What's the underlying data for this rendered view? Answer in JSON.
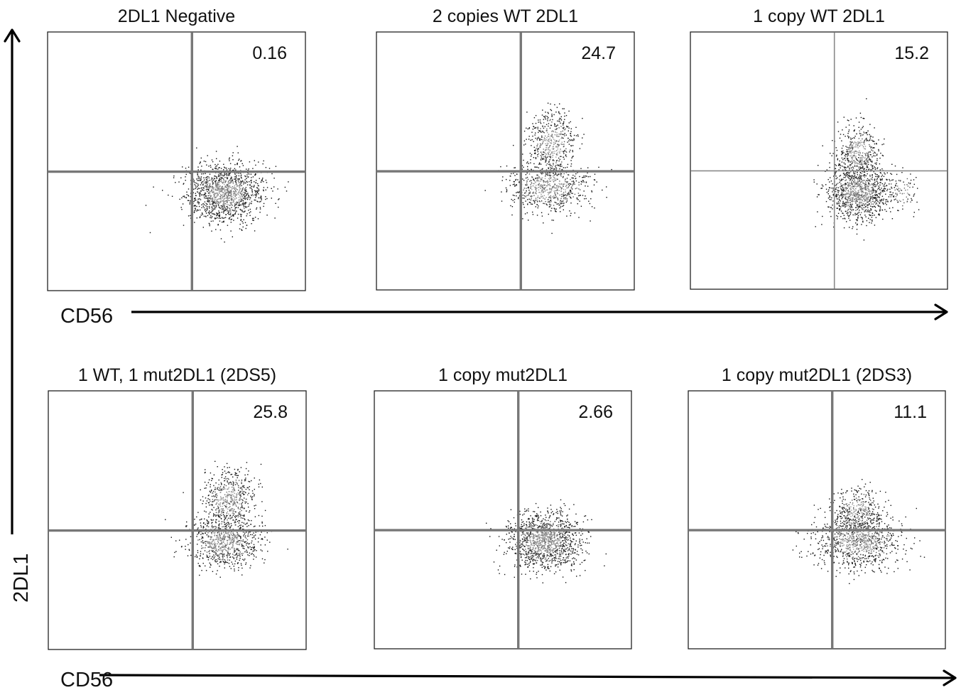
{
  "chart_data": {
    "type": "scatter",
    "plot_kind": "flow cytometry dot plots with quadrant gates",
    "grid": false,
    "xlabel": "CD56",
    "ylabel": "2DL1",
    "panels": [
      {
        "title": "2DL1 Negative",
        "quadrant_value": "0.16",
        "clusters": [
          {
            "cx": 0.69,
            "cy": 0.38,
            "sx": 0.075,
            "sy": 0.055,
            "n": 1400,
            "shade": "#444444"
          }
        ]
      },
      {
        "title": "2 copies WT 2DL1",
        "quadrant_value": "24.7",
        "clusters": [
          {
            "cx": 0.68,
            "cy": 0.57,
            "sx": 0.045,
            "sy": 0.065,
            "n": 500,
            "shade": "#2a2a2a"
          },
          {
            "cx": 0.67,
            "cy": 0.4,
            "sx": 0.08,
            "sy": 0.05,
            "n": 700,
            "shade": "#3a3a3a"
          }
        ]
      },
      {
        "title": "1 copy WT 2DL1",
        "quadrant_value": "15.2",
        "clusters": [
          {
            "cx": 0.65,
            "cy": 0.53,
            "sx": 0.04,
            "sy": 0.06,
            "n": 450,
            "shade": "#2a2a2a"
          },
          {
            "cx": 0.65,
            "cy": 0.38,
            "sx": 0.06,
            "sy": 0.055,
            "n": 1100,
            "shade": "#4a4a4a"
          },
          {
            "cx": 0.82,
            "cy": 0.38,
            "sx": 0.035,
            "sy": 0.04,
            "n": 90,
            "shade": "#222222"
          }
        ]
      },
      {
        "title": "1 WT, 1 mut2DL1 (2DS5)",
        "quadrant_value": "25.8",
        "clusters": [
          {
            "cx": 0.7,
            "cy": 0.58,
            "sx": 0.05,
            "sy": 0.06,
            "n": 550,
            "shade": "#2a2a2a"
          },
          {
            "cx": 0.68,
            "cy": 0.42,
            "sx": 0.07,
            "sy": 0.05,
            "n": 800,
            "shade": "#3a3a3a"
          }
        ]
      },
      {
        "title": "1 copy mut2DL1",
        "quadrant_value": "2.66",
        "clusters": [
          {
            "cx": 0.66,
            "cy": 0.42,
            "sx": 0.07,
            "sy": 0.055,
            "n": 1300,
            "shade": "#444444"
          }
        ]
      },
      {
        "title": "1 copy mut2DL1 (2DS3)",
        "quadrant_value": "11.1",
        "clusters": [
          {
            "cx": 0.66,
            "cy": 0.53,
            "sx": 0.045,
            "sy": 0.05,
            "n": 350,
            "shade": "#2a2a2a"
          },
          {
            "cx": 0.66,
            "cy": 0.42,
            "sx": 0.085,
            "sy": 0.055,
            "n": 1000,
            "shade": "#3a3a3a"
          }
        ]
      }
    ],
    "gate_x": 0.56,
    "gate_y": 0.46,
    "xlim": [
      0,
      1
    ],
    "ylim": [
      0,
      1
    ]
  }
}
